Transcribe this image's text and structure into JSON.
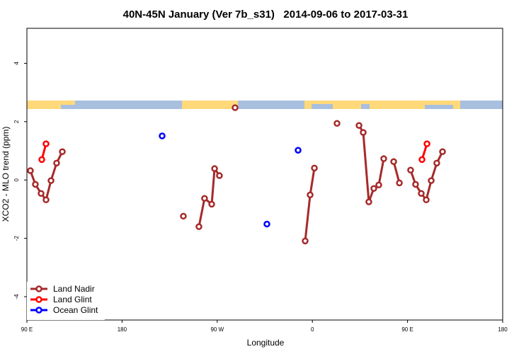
{
  "chart_data": {
    "type": "line",
    "title": "40N-45N January (Ver 7b_s31)   2014-09-06 to 2017-03-31",
    "xlabel": "Longitude",
    "ylabel": "XCO2 - MLO trend (ppm)",
    "xlim": [
      90,
      540
    ],
    "xticks": [
      {
        "value": 90,
        "label": "90 E"
      },
      {
        "value": 180,
        "label": "180"
      },
      {
        "value": 270,
        "label": "90 W"
      },
      {
        "value": 360,
        "label": "0"
      },
      {
        "value": 450,
        "label": "90 E"
      },
      {
        "value": 540,
        "label": "180"
      }
    ],
    "ylim": [
      -4.8,
      5.2
    ],
    "yticks": [
      -4,
      -2,
      0,
      2,
      4
    ],
    "legend": "bottom-left",
    "series": [
      {
        "name": "Land Nadir",
        "color": "#a52a2a",
        "lines": true,
        "x": [
          93.3,
          98,
          103.4,
          108.1,
          112.8,
          118.1,
          123.5,
          null,
          238,
          null,
          252.7,
          258,
          264.8,
          267.5,
          272.1,
          null,
          286.9,
          null,
          353.2,
          357.9,
          361.9,
          null,
          383.3,
          null,
          404.1,
          408.1,
          413.4,
          418.1,
          422.8,
          427.5,
          null,
          436.9,
          442.3,
          null,
          452.9,
          457.6,
          463,
          467.7,
          472.4,
          477.7,
          483.1
        ],
        "values": [
          0.32,
          -0.15,
          -0.46,
          -0.68,
          -0.02,
          0.58,
          0.97,
          null,
          -1.24,
          null,
          -1.6,
          -0.63,
          -0.83,
          0.39,
          0.15,
          null,
          2.48,
          null,
          -2.09,
          -0.51,
          0.41,
          null,
          1.94,
          null,
          1.87,
          1.63,
          -0.75,
          -0.29,
          -0.17,
          0.73,
          null,
          0.63,
          -0.1,
          null,
          0.34,
          -0.15,
          -0.46,
          -0.68,
          -0.02,
          0.58,
          0.97
        ]
      },
      {
        "name": "Land Glint",
        "color": "#ff0000",
        "lines": true,
        "x": [
          104.1,
          108.1,
          null,
          463.7,
          468.4
        ],
        "values": [
          0.7,
          1.24,
          null,
          0.7,
          1.24
        ]
      },
      {
        "name": "Ocean Glint",
        "color": "#0000ff",
        "lines": false,
        "x": [
          217.9,
          317,
          346.5
        ],
        "values": [
          1.51,
          -1.51,
          1.02
        ]
      }
    ]
  }
}
